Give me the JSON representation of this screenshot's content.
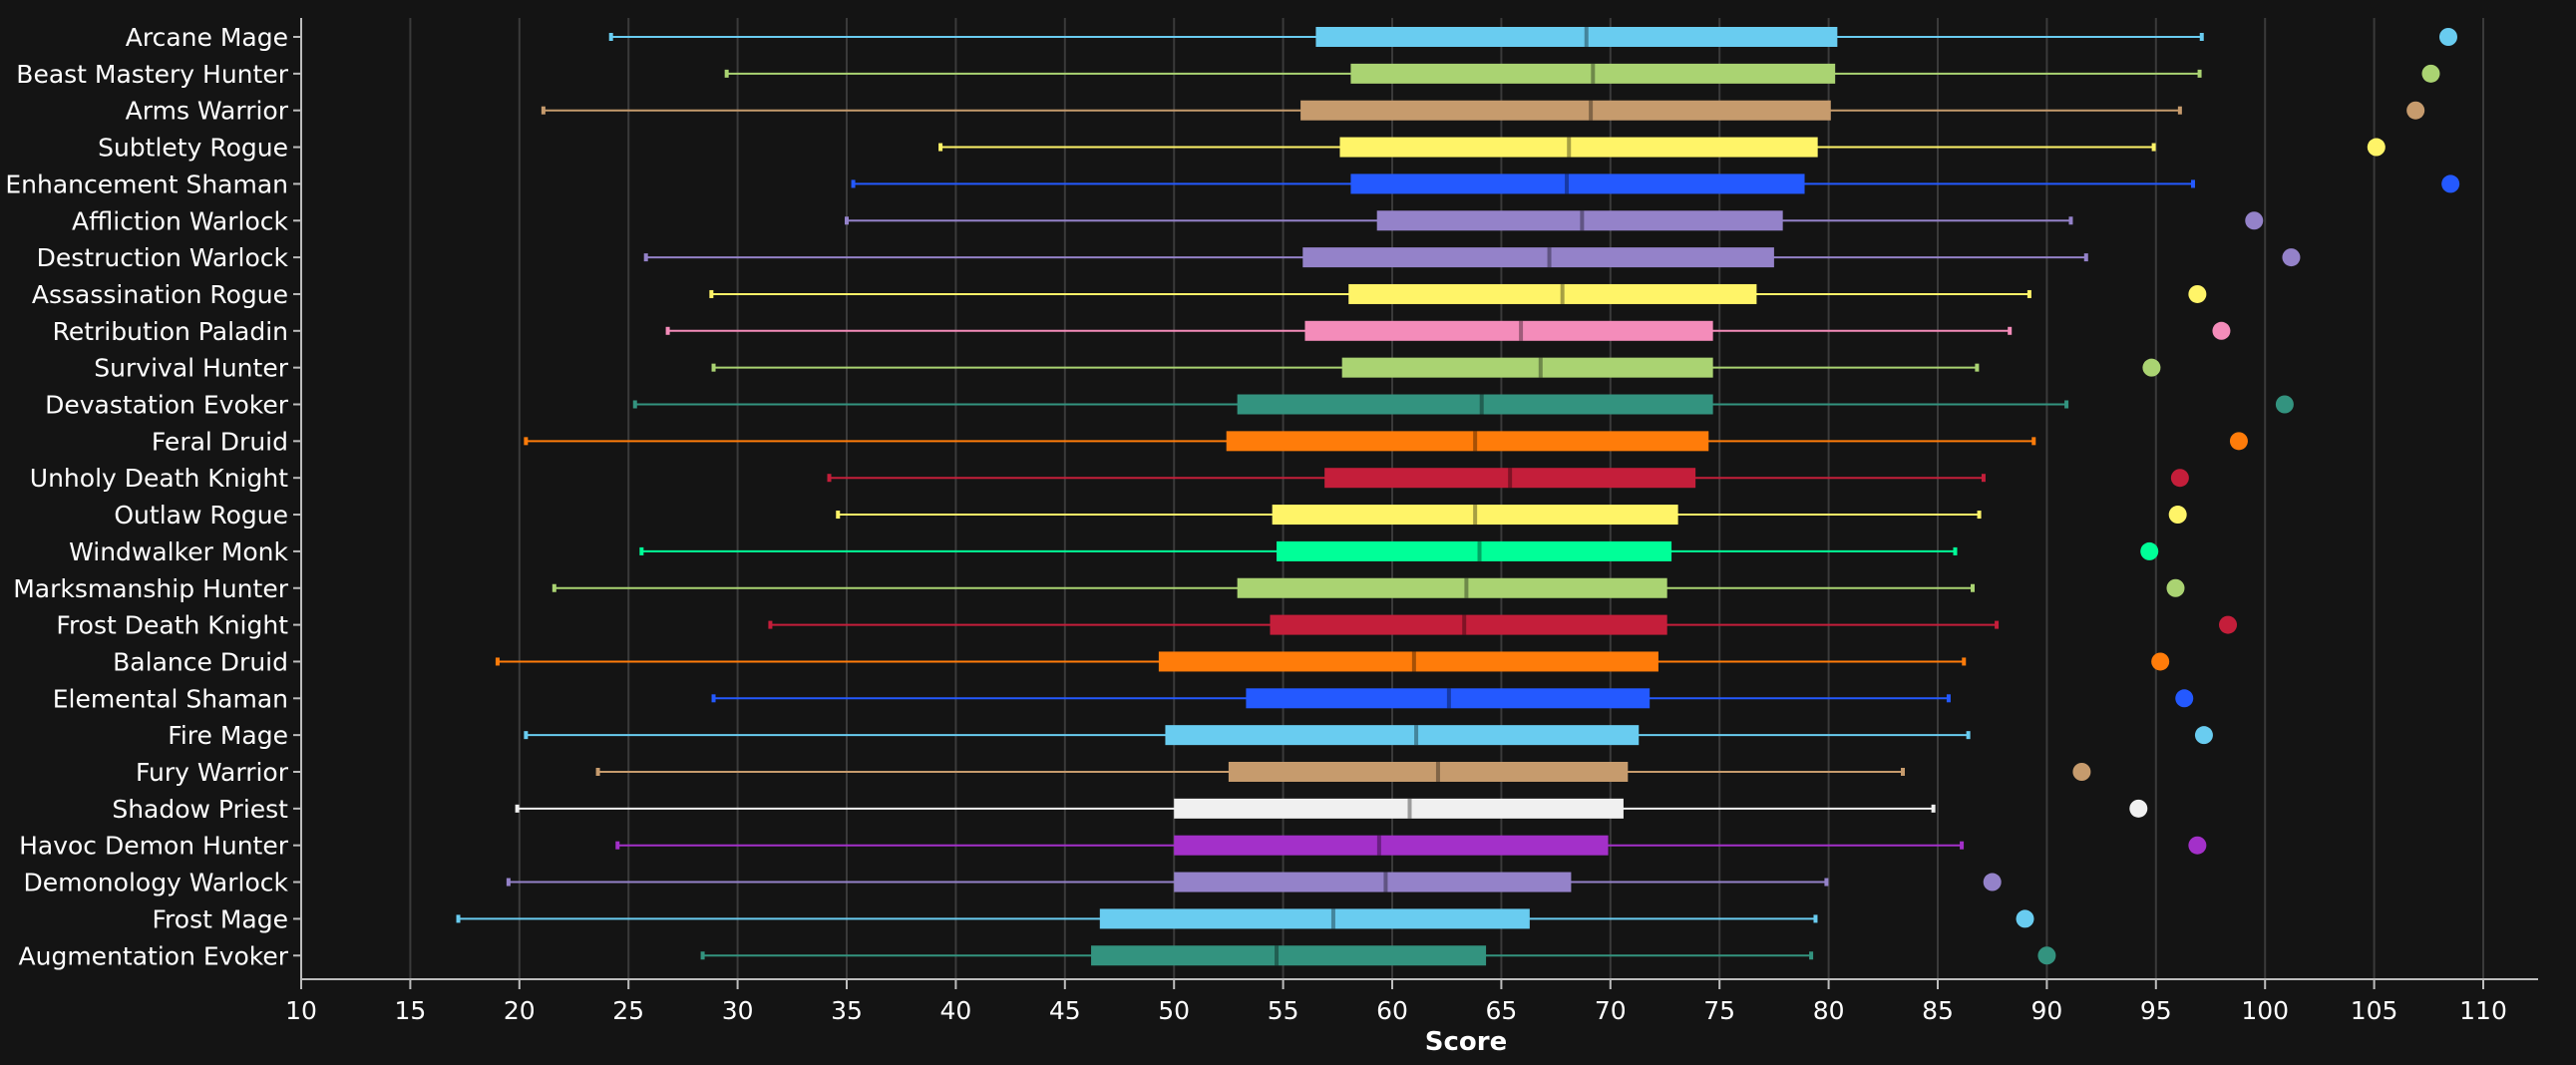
{
  "chart_data": {
    "type": "box",
    "orientation": "horizontal",
    "xlabel": "Score",
    "xlim": [
      10,
      112
    ],
    "xticks": [
      10,
      15,
      20,
      25,
      30,
      35,
      40,
      45,
      50,
      55,
      60,
      65,
      70,
      75,
      80,
      85,
      90,
      95,
      100,
      105,
      110
    ],
    "grid": true,
    "legend": "none",
    "background": "#141414",
    "series": [
      {
        "name": "Arcane Mage",
        "color": "#69ccf0",
        "min": 24.2,
        "q1": 56.5,
        "median": 68.9,
        "q3": 80.4,
        "max": 97.1,
        "outlier": 108.4
      },
      {
        "name": "Beast Mastery Hunter",
        "color": "#aad372",
        "min": 29.5,
        "q1": 58.1,
        "median": 69.2,
        "q3": 80.3,
        "max": 97.0,
        "outlier": 107.6
      },
      {
        "name": "Arms Warrior",
        "color": "#c69b6d",
        "min": 21.1,
        "q1": 55.8,
        "median": 69.1,
        "q3": 80.1,
        "max": 96.1,
        "outlier": 106.9
      },
      {
        "name": "Subtlety Rogue",
        "color": "#fff468",
        "min": 39.3,
        "q1": 57.6,
        "median": 68.1,
        "q3": 79.5,
        "max": 94.9,
        "outlier": 105.1
      },
      {
        "name": "Enhancement Shaman",
        "color": "#2459ff",
        "min": 35.3,
        "q1": 58.1,
        "median": 68.0,
        "q3": 78.9,
        "max": 96.7,
        "outlier": 108.5
      },
      {
        "name": "Affliction Warlock",
        "color": "#9482c9",
        "min": 35.0,
        "q1": 59.3,
        "median": 68.7,
        "q3": 77.9,
        "max": 91.1,
        "outlier": 99.5
      },
      {
        "name": "Destruction Warlock",
        "color": "#9482c9",
        "min": 25.8,
        "q1": 55.9,
        "median": 67.2,
        "q3": 77.5,
        "max": 91.8,
        "outlier": 101.2
      },
      {
        "name": "Assassination Rogue",
        "color": "#fff468",
        "min": 28.8,
        "q1": 58.0,
        "median": 67.8,
        "q3": 76.7,
        "max": 89.2,
        "outlier": 96.9
      },
      {
        "name": "Retribution Paladin",
        "color": "#f48cba",
        "min": 26.8,
        "q1": 56.0,
        "median": 65.9,
        "q3": 74.7,
        "max": 88.3,
        "outlier": 98.0
      },
      {
        "name": "Survival Hunter",
        "color": "#aad372",
        "min": 28.9,
        "q1": 57.7,
        "median": 66.8,
        "q3": 74.7,
        "max": 86.8,
        "outlier": 94.8
      },
      {
        "name": "Devastation Evoker",
        "color": "#33937f",
        "min": 25.3,
        "q1": 52.9,
        "median": 64.1,
        "q3": 74.7,
        "max": 90.9,
        "outlier": 100.9
      },
      {
        "name": "Feral Druid",
        "color": "#ff7c0a",
        "min": 20.3,
        "q1": 52.4,
        "median": 63.8,
        "q3": 74.5,
        "max": 89.4,
        "outlier": 98.8
      },
      {
        "name": "Unholy Death Knight",
        "color": "#c41e3a",
        "min": 34.2,
        "q1": 56.9,
        "median": 65.4,
        "q3": 73.9,
        "max": 87.1,
        "outlier": 96.1
      },
      {
        "name": "Outlaw Rogue",
        "color": "#fff468",
        "min": 34.6,
        "q1": 54.5,
        "median": 63.8,
        "q3": 73.1,
        "max": 86.9,
        "outlier": 96.0
      },
      {
        "name": "Windwalker Monk",
        "color": "#00ff98",
        "min": 25.6,
        "q1": 54.7,
        "median": 64.0,
        "q3": 72.8,
        "max": 85.8,
        "outlier": 94.7
      },
      {
        "name": "Marksmanship Hunter",
        "color": "#aad372",
        "min": 21.6,
        "q1": 52.9,
        "median": 63.4,
        "q3": 72.6,
        "max": 86.6,
        "outlier": 95.9
      },
      {
        "name": "Frost Death Knight",
        "color": "#c41e3a",
        "min": 31.5,
        "q1": 54.4,
        "median": 63.3,
        "q3": 72.6,
        "max": 87.7,
        "outlier": 98.3
      },
      {
        "name": "Balance Druid",
        "color": "#ff7c0a",
        "min": 19.0,
        "q1": 49.3,
        "median": 61.0,
        "q3": 72.2,
        "max": 86.2,
        "outlier": 95.2
      },
      {
        "name": "Elemental Shaman",
        "color": "#2459ff",
        "min": 28.9,
        "q1": 53.3,
        "median": 62.6,
        "q3": 71.8,
        "max": 85.5,
        "outlier": 96.3
      },
      {
        "name": "Fire Mage",
        "color": "#69ccf0",
        "min": 20.3,
        "q1": 49.6,
        "median": 61.1,
        "q3": 71.3,
        "max": 86.4,
        "outlier": 97.2
      },
      {
        "name": "Fury Warrior",
        "color": "#c69b6d",
        "min": 23.6,
        "q1": 52.5,
        "median": 62.1,
        "q3": 70.8,
        "max": 83.4,
        "outlier": 91.6
      },
      {
        "name": "Shadow Priest",
        "color": "#f0f0f0",
        "min": 19.9,
        "q1": 50.0,
        "median": 60.8,
        "q3": 70.6,
        "max": 84.8,
        "outlier": 94.2
      },
      {
        "name": "Havoc Demon Hunter",
        "color": "#a330c9",
        "min": 24.5,
        "q1": 50.0,
        "median": 59.4,
        "q3": 69.9,
        "max": 86.1,
        "outlier": 96.9
      },
      {
        "name": "Demonology Warlock",
        "color": "#9482c9",
        "min": 19.5,
        "q1": 50.0,
        "median": 59.7,
        "q3": 68.2,
        "max": 79.9,
        "outlier": 87.5
      },
      {
        "name": "Frost Mage",
        "color": "#69ccf0",
        "min": 17.2,
        "q1": 46.6,
        "median": 57.3,
        "q3": 66.3,
        "max": 79.4,
        "outlier": 89.0
      },
      {
        "name": "Augmentation Evoker",
        "color": "#33937f",
        "min": 28.4,
        "q1": 46.2,
        "median": 54.7,
        "q3": 64.3,
        "max": 79.2,
        "outlier": 90.0
      }
    ]
  }
}
